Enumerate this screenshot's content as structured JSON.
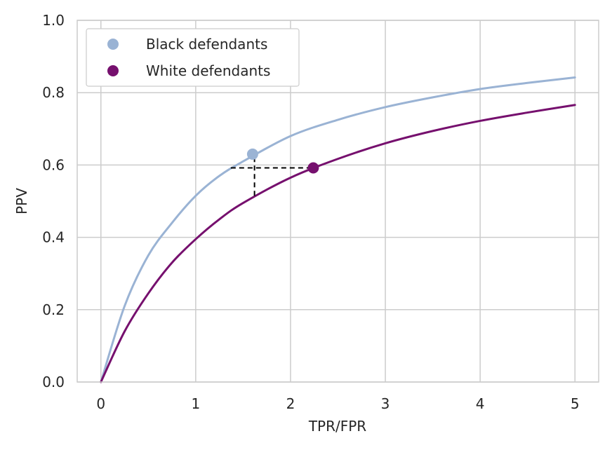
{
  "chart_data": {
    "type": "line",
    "xlabel": "TPR/FPR",
    "ylabel": "PPV",
    "xlim": [
      -0.25,
      5.25
    ],
    "ylim": [
      0,
      1
    ],
    "xticks": [
      0,
      1,
      2,
      3,
      4,
      5
    ],
    "xtick_labels": [
      "0",
      "1",
      "2",
      "3",
      "4",
      "5"
    ],
    "yticks": [
      0,
      0.2,
      0.4,
      0.6,
      0.8,
      1.0
    ],
    "ytick_labels": [
      "0.0",
      "0.2",
      "0.4",
      "0.6",
      "0.8",
      "1.0"
    ],
    "grid": true,
    "legend_placement": "top-left",
    "series": [
      {
        "name": "Black defendants",
        "color": "#9ab3d4",
        "x": [
          0,
          0.25,
          0.5,
          0.75,
          1.0,
          1.25,
          1.5,
          2.0,
          2.5,
          3.0,
          3.5,
          4.0,
          4.5,
          5.0
        ],
        "y": [
          0,
          0.21,
          0.35,
          0.44,
          0.515,
          0.57,
          0.61,
          0.68,
          0.725,
          0.76,
          0.787,
          0.81,
          0.827,
          0.842
        ],
        "point": {
          "x": 1.6,
          "y": 0.63
        }
      },
      {
        "name": "White defendants",
        "color": "#76106e",
        "x": [
          0,
          0.25,
          0.5,
          0.75,
          1.0,
          1.25,
          1.5,
          2.0,
          2.5,
          3.0,
          3.5,
          4.0,
          4.5,
          5.0
        ],
        "y": [
          0,
          0.14,
          0.245,
          0.33,
          0.395,
          0.45,
          0.495,
          0.565,
          0.617,
          0.66,
          0.694,
          0.722,
          0.745,
          0.766
        ],
        "point": {
          "x": 2.24,
          "y": 0.592
        }
      }
    ],
    "annotations": [
      {
        "type": "hline",
        "style": "dashed",
        "color": "#000000",
        "y": 0.592,
        "x_from": 1.37,
        "x_to": 2.24
      },
      {
        "type": "vline",
        "style": "dashed",
        "color": "#000000",
        "x": 1.62,
        "y_from": 0.515,
        "y_to": 0.63
      }
    ]
  }
}
